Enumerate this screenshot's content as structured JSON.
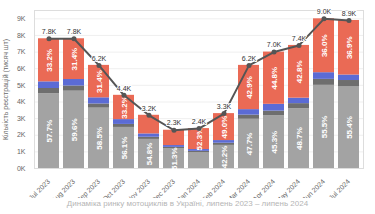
{
  "chart_data": {
    "type": "bar",
    "stacked": true,
    "data_labels": true,
    "grid": true,
    "title": "Динаміка ринку мотоциклів в Україні, липень 2023 – липень 2024",
    "ylabel": "Кількість реєстрацій (тисяч шт)",
    "categories": [
      "Jul 2023",
      "Aug 2023",
      "Sep 2023",
      "Oct 2023",
      "Nov 2023",
      "Dec 2023",
      "Jan 2024",
      "Feb 2024",
      "Mar 2024",
      "Apr 2024",
      "May 2024",
      "Jun 2024",
      "Jul 2024"
    ],
    "ylim": [
      0,
      9.5
    ],
    "yticks": [
      {
        "value": 0,
        "label": "0K"
      },
      {
        "value": 1,
        "label": "1K"
      },
      {
        "value": 2,
        "label": "2K"
      },
      {
        "value": 3,
        "label": "3K"
      },
      {
        "value": 4,
        "label": "4K"
      },
      {
        "value": 5,
        "label": "5K"
      },
      {
        "value": 6,
        "label": "6K"
      },
      {
        "value": 7,
        "label": "7K"
      },
      {
        "value": 8,
        "label": "8K"
      },
      {
        "value": 9,
        "label": "9K"
      }
    ],
    "series": [
      {
        "type": "bar",
        "color": "#a3a3a3",
        "values": [
          4.5,
          4.65,
          3.63,
          2.47,
          1.75,
          1.18,
          0.94,
          1.39,
          2.96,
          3.17,
          3.6,
          5.0,
          4.93
        ],
        "share_labels": [
          "57.7%",
          "59.6%",
          "58.5%",
          "56.1%",
          "54.8%",
          "51.3%",
          null,
          "42.2%",
          "47.7%",
          "45.3%",
          "48.7%",
          "55.5%",
          "55.4%"
        ]
      },
      {
        "type": "bar",
        "color": "#6e6e6e",
        "values": [
          0.31,
          0.31,
          0.25,
          0.18,
          0.13,
          0.09,
          0.09,
          0.13,
          0.25,
          0.28,
          0.3,
          0.36,
          0.36
        ]
      },
      {
        "type": "bar",
        "color": "#5b6bd5",
        "values": [
          0.4,
          0.39,
          0.37,
          0.29,
          0.2,
          0.11,
          0.11,
          0.16,
          0.33,
          0.41,
          0.33,
          0.4,
          0.33
        ]
      },
      {
        "type": "bar",
        "color": "#ea6a55",
        "values": [
          2.59,
          2.45,
          1.95,
          1.46,
          1.12,
          0.92,
          1.26,
          1.62,
          2.66,
          3.14,
          3.17,
          3.24,
          3.28
        ],
        "share_labels": [
          "33.2%",
          "31.4%",
          "31.4%",
          "33.2%",
          null,
          null,
          "52.3%",
          "49.0%",
          "42.9%",
          "44.8%",
          "42.8%",
          "36.0%",
          "36.9%"
        ]
      },
      {
        "type": "line",
        "color": "#555555",
        "marker": "circle",
        "values": [
          7.8,
          7.8,
          6.2,
          4.4,
          3.2,
          2.3,
          2.4,
          3.3,
          6.2,
          7.0,
          7.4,
          9.0,
          8.9
        ],
        "value_labels": [
          "7.8K",
          "7.8K",
          "6.2K",
          "4.4K",
          "3.2K",
          "2.3K",
          "2.4K",
          "3.3K",
          "6.2K",
          "7.0K",
          "7.4K",
          "9.0K",
          "8.9K"
        ]
      }
    ]
  }
}
